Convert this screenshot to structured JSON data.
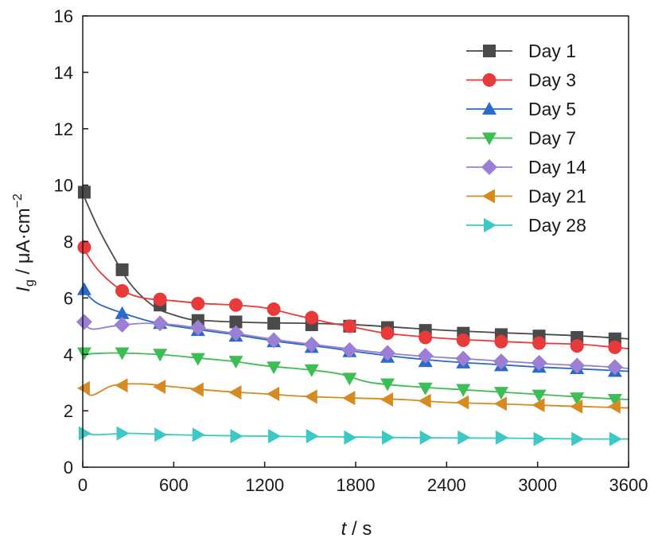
{
  "chart_data": {
    "type": "line",
    "title": "",
    "xlabel": {
      "var": "t",
      "sep": " / ",
      "unit": "s"
    },
    "ylabel": {
      "var": "I",
      "sub": "g",
      "sep": " / ",
      "unit": "μA·cm",
      "sup": "−2"
    },
    "xlim": [
      0,
      3600
    ],
    "ylim": [
      0,
      16
    ],
    "xticks": [
      0,
      600,
      1200,
      1800,
      2400,
      3000,
      3600
    ],
    "yticks": [
      0,
      2,
      4,
      6,
      8,
      10,
      12,
      14,
      16
    ],
    "grid": false,
    "legend_position": "top-right",
    "marker_x": [
      10,
      260,
      510,
      760,
      1010,
      1260,
      1510,
      1760,
      2010,
      2260,
      2510,
      2760,
      3010,
      3260,
      3510
    ],
    "series": [
      {
        "name": "Day 1",
        "color": "#4a4a4a",
        "marker": "square",
        "curve": [
          [
            0,
            9.7
          ],
          [
            100,
            8.5
          ],
          [
            200,
            7.5
          ],
          [
            300,
            6.6
          ],
          [
            400,
            6.0
          ],
          [
            500,
            5.6
          ],
          [
            600,
            5.4
          ],
          [
            700,
            5.25
          ],
          [
            800,
            5.2
          ],
          [
            1000,
            5.15
          ],
          [
            1200,
            5.12
          ],
          [
            1500,
            5.1
          ],
          [
            1800,
            5.05
          ],
          [
            2100,
            4.95
          ],
          [
            2400,
            4.85
          ],
          [
            2700,
            4.78
          ],
          [
            3000,
            4.72
          ],
          [
            3300,
            4.65
          ],
          [
            3600,
            4.55
          ]
        ],
        "values": [
          9.75,
          7.0,
          5.75,
          5.2,
          5.15,
          5.1,
          5.05,
          5.0,
          4.95,
          4.85,
          4.75,
          4.7,
          4.65,
          4.6,
          4.55
        ]
      },
      {
        "name": "Day 3",
        "color": "#e83a3a",
        "marker": "circle",
        "curve": [
          [
            0,
            7.8
          ],
          [
            100,
            7.0
          ],
          [
            250,
            6.3
          ],
          [
            400,
            6.0
          ],
          [
            600,
            5.9
          ],
          [
            800,
            5.8
          ],
          [
            1000,
            5.75
          ],
          [
            1200,
            5.65
          ],
          [
            1400,
            5.4
          ],
          [
            1600,
            5.15
          ],
          [
            1800,
            4.95
          ],
          [
            2000,
            4.75
          ],
          [
            2300,
            4.6
          ],
          [
            2600,
            4.5
          ],
          [
            3000,
            4.4
          ],
          [
            3300,
            4.35
          ],
          [
            3600,
            4.2
          ]
        ],
        "values": [
          7.8,
          6.25,
          5.95,
          5.8,
          5.75,
          5.6,
          5.3,
          5.0,
          4.75,
          4.6,
          4.5,
          4.45,
          4.4,
          4.3,
          4.25
        ]
      },
      {
        "name": "Day 5",
        "color": "#2a6ac8",
        "marker": "triangle-up",
        "curve": [
          [
            0,
            6.3
          ],
          [
            100,
            5.8
          ],
          [
            300,
            5.4
          ],
          [
            500,
            5.1
          ],
          [
            800,
            4.85
          ],
          [
            1000,
            4.7
          ],
          [
            1300,
            4.45
          ],
          [
            1600,
            4.25
          ],
          [
            1800,
            4.1
          ],
          [
            2100,
            3.9
          ],
          [
            2400,
            3.75
          ],
          [
            2700,
            3.65
          ],
          [
            3000,
            3.55
          ],
          [
            3300,
            3.48
          ],
          [
            3600,
            3.4
          ]
        ],
        "values": [
          6.3,
          5.45,
          5.1,
          4.85,
          4.65,
          4.45,
          4.25,
          4.1,
          3.9,
          3.75,
          3.7,
          3.6,
          3.55,
          3.5,
          3.4
        ]
      },
      {
        "name": "Day 7",
        "color": "#3cbd55",
        "marker": "triangle-down",
        "curve": [
          [
            0,
            4.0
          ],
          [
            200,
            4.05
          ],
          [
            500,
            4.0
          ],
          [
            800,
            3.85
          ],
          [
            1000,
            3.75
          ],
          [
            1200,
            3.6
          ],
          [
            1500,
            3.45
          ],
          [
            1700,
            3.3
          ],
          [
            1900,
            3.0
          ],
          [
            2200,
            2.85
          ],
          [
            2500,
            2.75
          ],
          [
            2800,
            2.65
          ],
          [
            3100,
            2.55
          ],
          [
            3400,
            2.45
          ],
          [
            3600,
            2.4
          ]
        ],
        "values": [
          4.05,
          4.05,
          4.0,
          3.85,
          3.75,
          3.55,
          3.45,
          3.15,
          2.95,
          2.8,
          2.75,
          2.65,
          2.55,
          2.45,
          2.4
        ]
      },
      {
        "name": "Day 14",
        "color": "#9b7fd4",
        "marker": "diamond",
        "curve": [
          [
            0,
            5.15
          ],
          [
            60,
            4.9
          ],
          [
            200,
            5.0
          ],
          [
            400,
            5.1
          ],
          [
            600,
            5.05
          ],
          [
            800,
            4.9
          ],
          [
            1000,
            4.75
          ],
          [
            1300,
            4.5
          ],
          [
            1600,
            4.3
          ],
          [
            1900,
            4.1
          ],
          [
            2200,
            3.95
          ],
          [
            2500,
            3.85
          ],
          [
            2800,
            3.75
          ],
          [
            3100,
            3.65
          ],
          [
            3400,
            3.58
          ],
          [
            3600,
            3.5
          ]
        ],
        "values": [
          5.15,
          5.05,
          5.1,
          4.95,
          4.75,
          4.5,
          4.35,
          4.15,
          4.05,
          3.95,
          3.85,
          3.75,
          3.7,
          3.6,
          3.55
        ]
      },
      {
        "name": "Day 21",
        "color": "#d68a22",
        "marker": "triangle-left",
        "curve": [
          [
            0,
            2.85
          ],
          [
            60,
            2.55
          ],
          [
            200,
            2.9
          ],
          [
            400,
            2.95
          ],
          [
            600,
            2.85
          ],
          [
            900,
            2.7
          ],
          [
            1200,
            2.6
          ],
          [
            1500,
            2.5
          ],
          [
            1800,
            2.45
          ],
          [
            2100,
            2.4
          ],
          [
            2400,
            2.3
          ],
          [
            2700,
            2.25
          ],
          [
            3000,
            2.2
          ],
          [
            3300,
            2.15
          ],
          [
            3600,
            2.1
          ]
        ],
        "values": [
          2.8,
          2.9,
          2.85,
          2.75,
          2.65,
          2.6,
          2.5,
          2.45,
          2.4,
          2.35,
          2.3,
          2.25,
          2.2,
          2.15,
          2.15
        ]
      },
      {
        "name": "Day 28",
        "color": "#3cc8c4",
        "marker": "triangle-right",
        "curve": [
          [
            0,
            1.2
          ],
          [
            100,
            1.15
          ],
          [
            300,
            1.2
          ],
          [
            600,
            1.15
          ],
          [
            900,
            1.12
          ],
          [
            1200,
            1.1
          ],
          [
            1500,
            1.08
          ],
          [
            1800,
            1.07
          ],
          [
            2100,
            1.05
          ],
          [
            2400,
            1.04
          ],
          [
            2700,
            1.03
          ],
          [
            3000,
            1.02
          ],
          [
            3300,
            1.0
          ],
          [
            3600,
            1.0
          ]
        ],
        "values": [
          1.2,
          1.2,
          1.15,
          1.15,
          1.1,
          1.1,
          1.1,
          1.05,
          1.05,
          1.05,
          1.05,
          1.05,
          1.0,
          1.0,
          1.0
        ]
      }
    ]
  }
}
